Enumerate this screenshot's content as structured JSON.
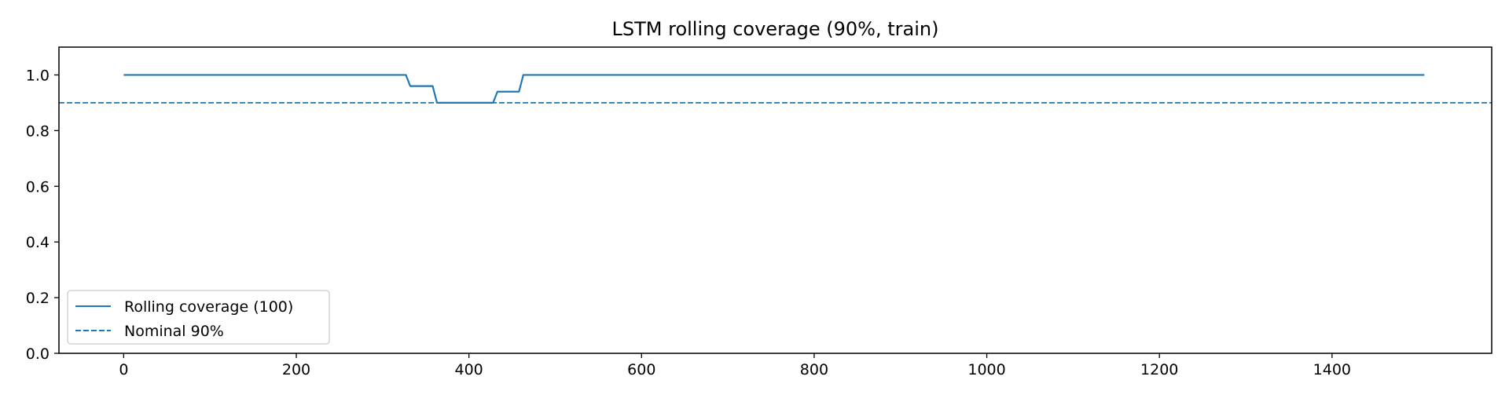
{
  "chart_data": {
    "type": "line",
    "title": "LSTM rolling coverage (90%, train)",
    "xlabel": "",
    "ylabel": "",
    "xlim": [
      -75,
      1585
    ],
    "ylim": [
      0.0,
      1.1
    ],
    "x_ticks": [
      0,
      200,
      400,
      600,
      800,
      1000,
      1200,
      1400
    ],
    "y_ticks": [
      0.0,
      0.2,
      0.4,
      0.6,
      0.8,
      1.0
    ],
    "y_tick_labels": [
      "0.0",
      "0.2",
      "0.4",
      "0.6",
      "0.8",
      "1.0"
    ],
    "grid": false,
    "legend_position": "lower-left",
    "series": [
      {
        "name": "Rolling coverage (100)",
        "style": "solid",
        "color": "#1f77b4",
        "x": [
          0,
          327,
          332,
          358,
          363,
          428,
          433,
          458,
          463,
          1507
        ],
        "y": [
          1.0,
          1.0,
          0.96,
          0.96,
          0.9,
          0.9,
          0.94,
          0.94,
          1.0,
          1.0
        ]
      },
      {
        "name": "Nominal 90%",
        "style": "dashed",
        "color": "#1f77b4",
        "y_constant": 0.9
      }
    ]
  }
}
